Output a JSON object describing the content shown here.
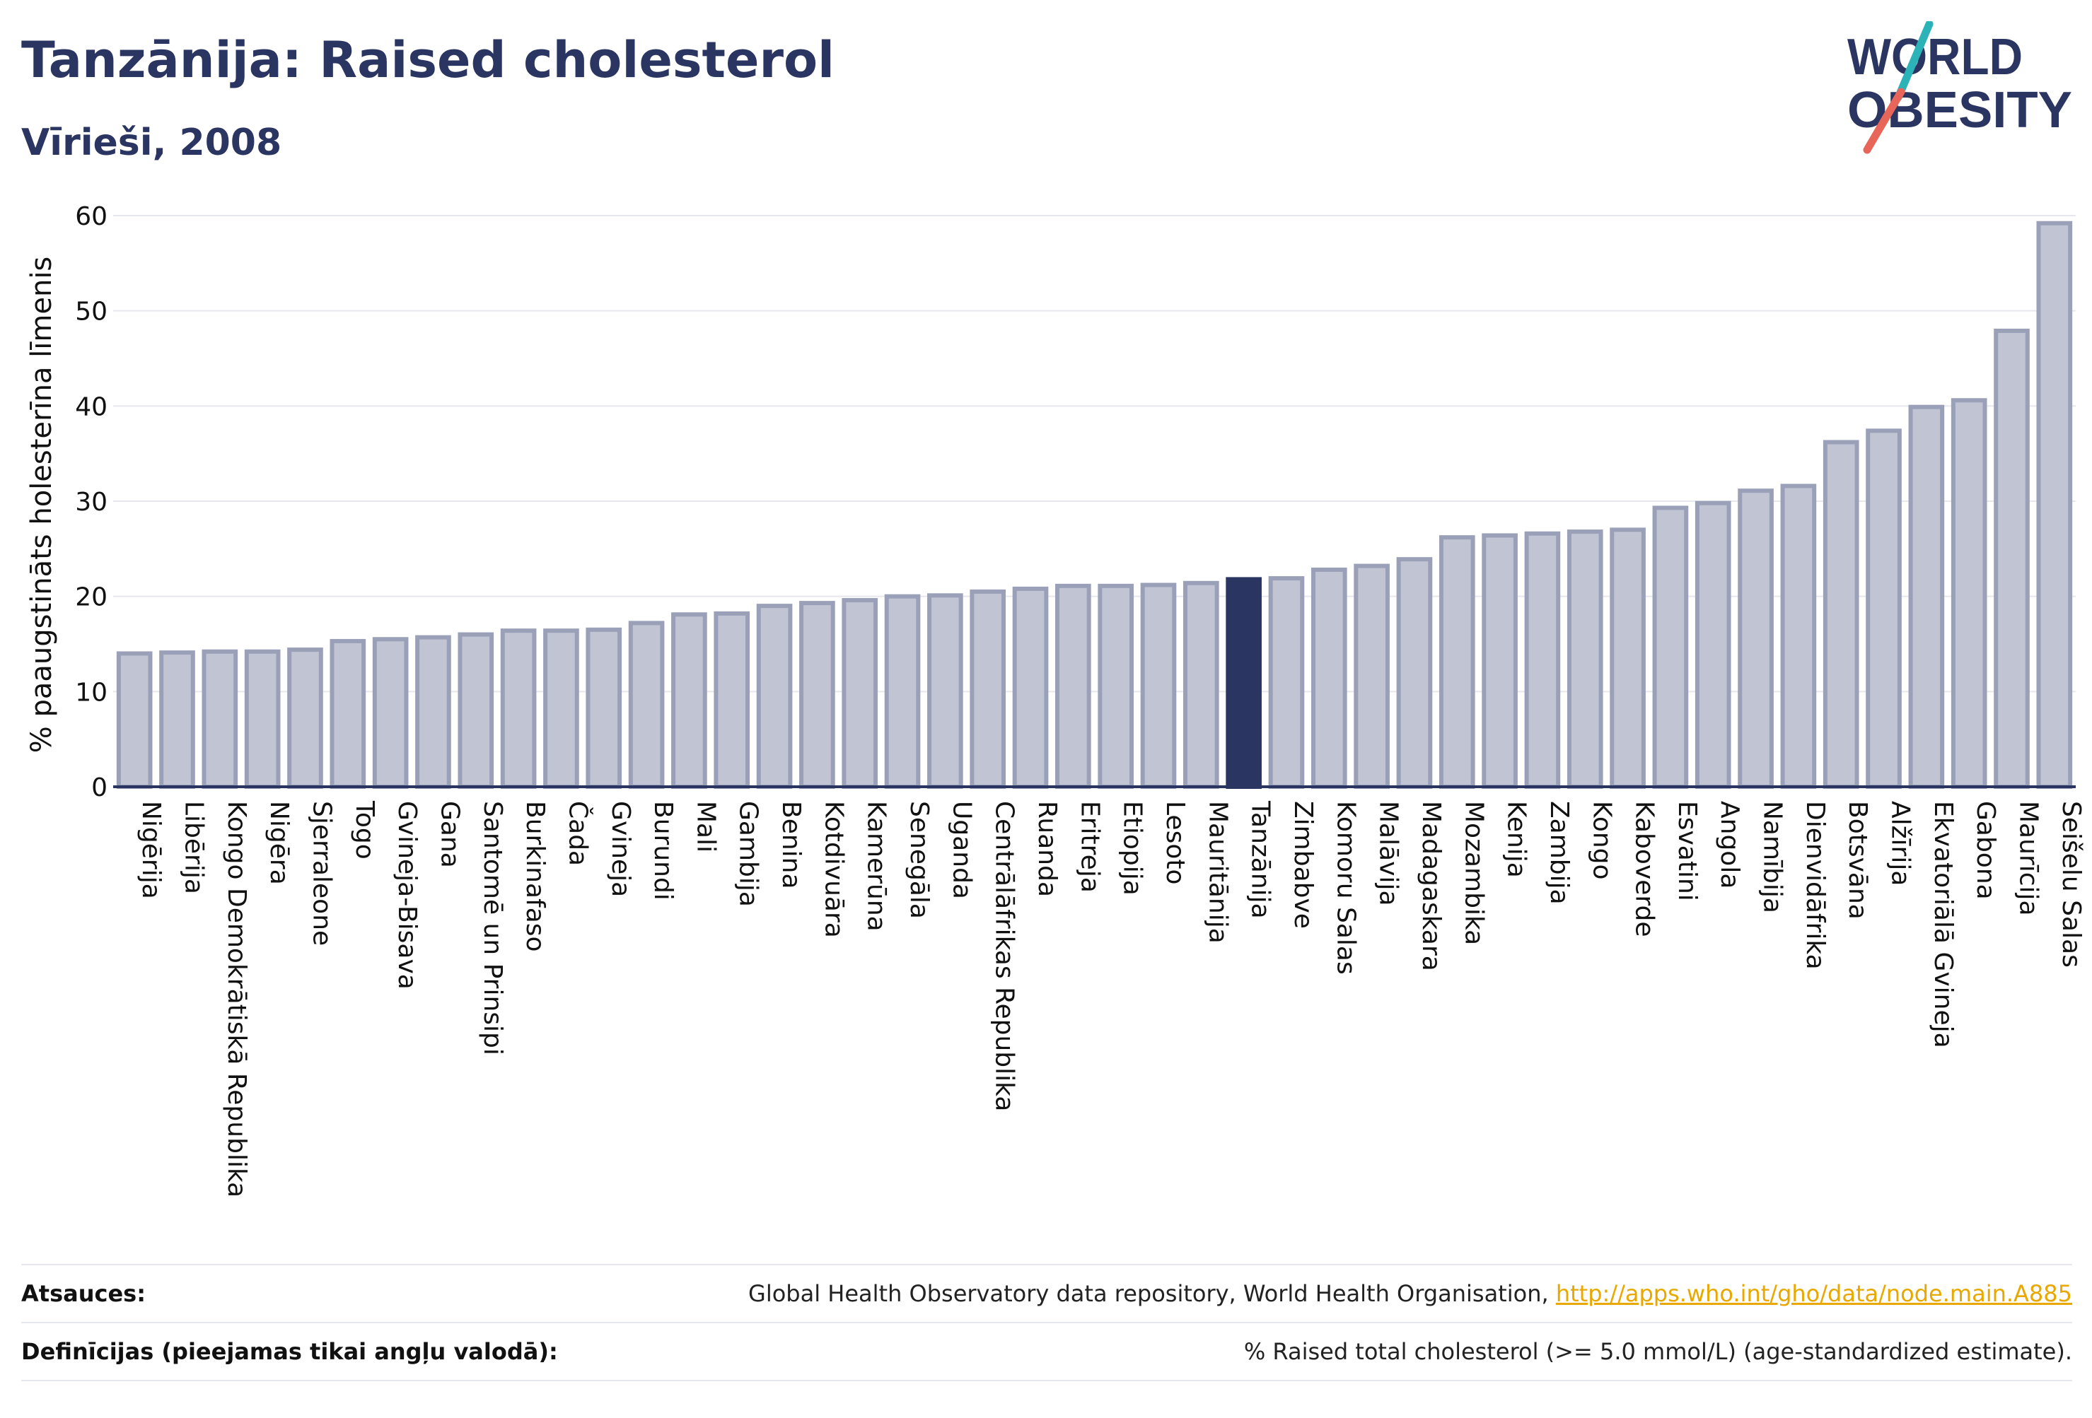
{
  "header": {
    "title": "Tanzānija: Raised cholesterol",
    "subtitle": "Vīrieši, 2008"
  },
  "logo": {
    "line1": "WORLD",
    "line2": "OBESITY",
    "colors": {
      "text": "#2b3561",
      "slash_top": "#2bb3b8",
      "slash_bottom": "#e8655a"
    }
  },
  "colors": {
    "bar_fill": "#c0c4d3",
    "bar_stroke": "#9aa0b8",
    "bar_highlight": "#2b3561",
    "grid": "#e6e8ee",
    "axis": "#2b3561"
  },
  "chart_data": {
    "type": "bar",
    "ylabel": "% paaugstināts holesterīna līmenis",
    "ylim": [
      0,
      60
    ],
    "yticks": [
      0,
      10,
      20,
      30,
      40,
      50,
      60
    ],
    "grid": true,
    "highlight": "Tanzānija",
    "categories": [
      "Nigērija",
      "Libērija",
      "Kongo Demokrātiskā Republika",
      "Nigēra",
      "Sjerraleone",
      "Togo",
      "Gvineja-Bisava",
      "Gana",
      "Santomē un Prinsipi",
      "Burkinafaso",
      "Čada",
      "Gvineja",
      "Burundi",
      "Mali",
      "Gambija",
      "Benina",
      "Kotdivuāra",
      "Kamerūna",
      "Senegāla",
      "Uganda",
      "Centrālāfrikas Republika",
      "Ruanda",
      "Eritreja",
      "Etiopija",
      "Lesoto",
      "Mauritānija",
      "Tanzānija",
      "Zimbabve",
      "Komoru Salas",
      "Malāvija",
      "Madagaskara",
      "Mozambika",
      "Kenija",
      "Zambija",
      "Kongo",
      "Kaboverde",
      "Esvatini",
      "Angola",
      "Namībija",
      "Dienvidāfrika",
      "Botsvāna",
      "Alžīrija",
      "Ekvatoriālā Gvineja",
      "Gabona",
      "Maurīcija",
      "Seišelu Salas"
    ],
    "values": [
      14.0,
      14.1,
      14.2,
      14.2,
      14.4,
      15.3,
      15.5,
      15.7,
      16.0,
      16.4,
      16.4,
      16.5,
      17.2,
      18.1,
      18.2,
      19.0,
      19.3,
      19.6,
      20.0,
      20.1,
      20.5,
      20.8,
      21.1,
      21.1,
      21.2,
      21.4,
      21.8,
      21.9,
      22.8,
      23.2,
      23.9,
      26.2,
      26.4,
      26.6,
      26.8,
      27.0,
      29.3,
      29.8,
      31.1,
      31.6,
      36.2,
      37.4,
      39.9,
      40.6,
      47.9,
      59.2
    ]
  },
  "footer": {
    "sources_label": "Atsauces:",
    "sources_text": "Global Health Observatory data repository, World Health Organisation, ",
    "sources_link": "http://apps.who.int/gho/data/node.main.A885",
    "definitions_label": "Definīcijas (pieejamas tikai angļu valodā):",
    "definitions_text": "% Raised total cholesterol (>= 5.0 mmol/L) (age-standardized estimate)."
  }
}
